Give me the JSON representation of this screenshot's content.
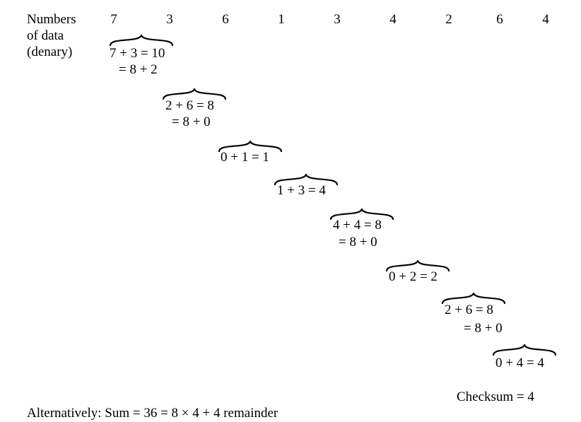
{
  "header": {
    "label_lines": [
      "Numbers",
      "of data",
      "(denary)"
    ],
    "values": [
      "7",
      "3",
      "6",
      "1",
      "3",
      "4",
      "2",
      "6",
      "4"
    ]
  },
  "steps": [
    {
      "sum": "7 + 3 = 10",
      "mod": "= 8 + 2"
    },
    {
      "sum": "2 + 6 = 8",
      "mod": "= 8 + 0"
    },
    {
      "sum": "0 + 1 = 1",
      "mod": ""
    },
    {
      "sum": "1 + 3 = 4",
      "mod": ""
    },
    {
      "sum": "4 + 4 = 8",
      "mod": "= 8 + 0"
    },
    {
      "sum": "0 + 2 = 2",
      "mod": ""
    },
    {
      "sum": "2 + 6 = 8",
      "mod": "= 8 + 0"
    },
    {
      "sum": "0 + 4 = 4",
      "mod": ""
    }
  ],
  "checksum": "Checksum = 4",
  "alternative": "Alternatively: Sum = 36 = 8 × 4 + 4 remainder"
}
